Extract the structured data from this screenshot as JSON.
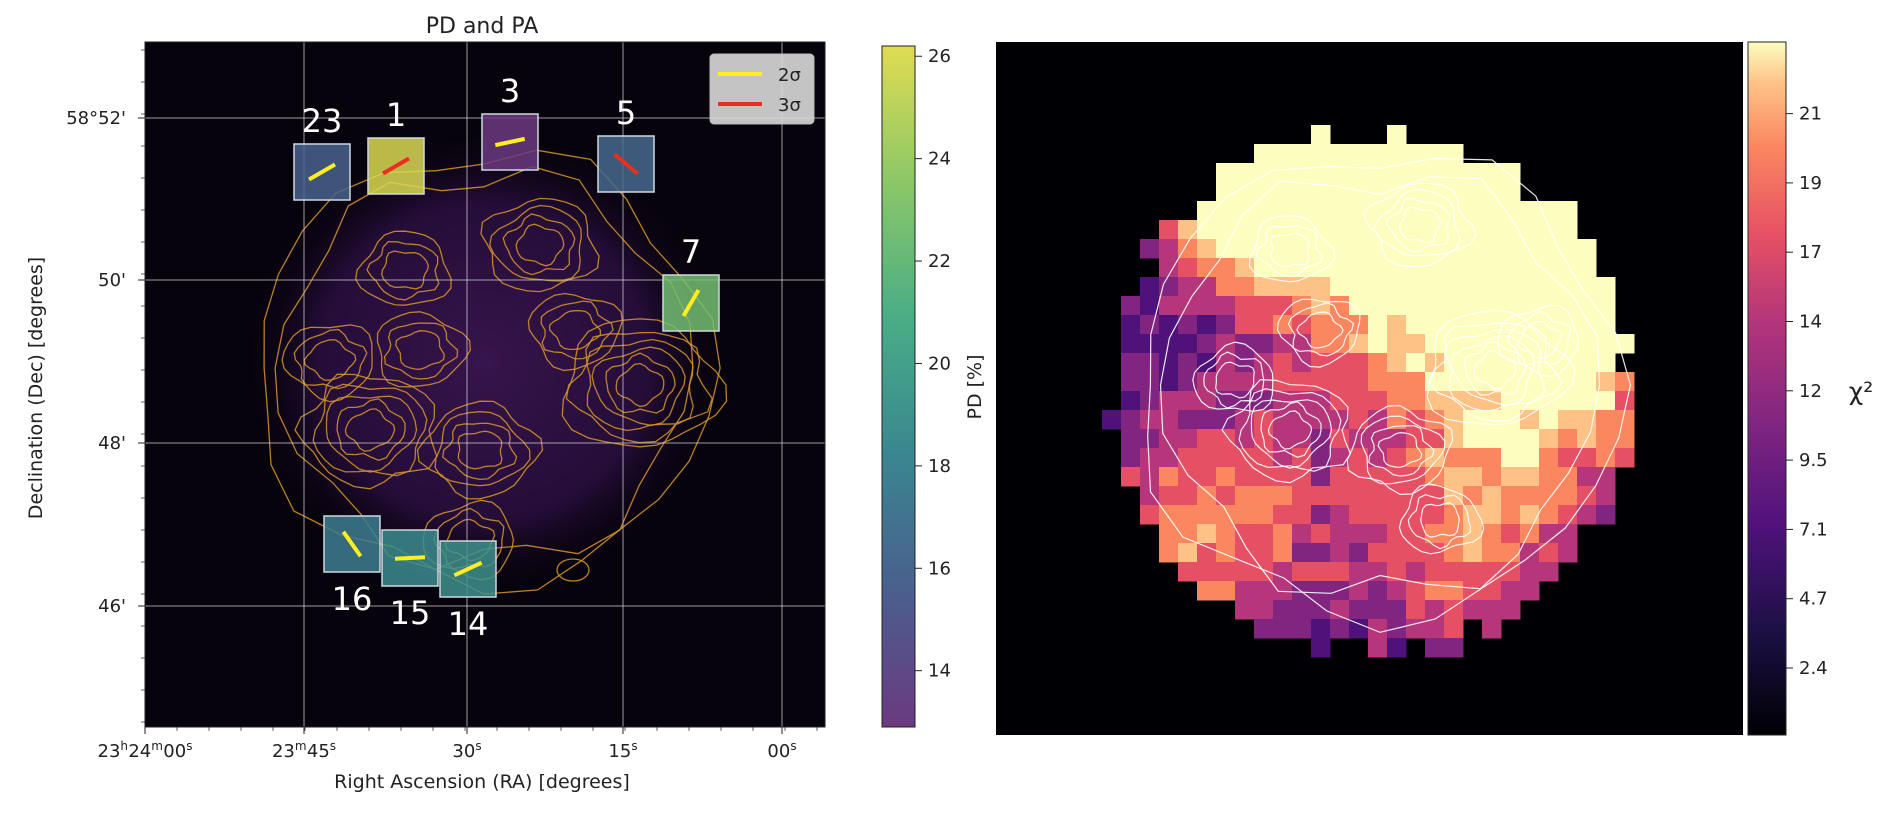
{
  "chart_data": [
    {
      "type": "heatmap",
      "title": "PD and PA",
      "xlabel": "Right Ascension (RA) [degrees]",
      "ylabel": "Declination (Dec) [degrees]",
      "x_ticks": [
        {
          "pre": "23",
          "h": "h",
          "m": "24",
          "mm": "m",
          "s": "00",
          "ss": "s"
        },
        {
          "pre": "23",
          "h": "m",
          "m": "45",
          "mm": "s",
          "s": "",
          "ss": ""
        },
        {
          "pre": "30",
          "h": "s",
          "m": "",
          "mm": "",
          "s": "",
          "ss": ""
        },
        {
          "pre": "15",
          "h": "s",
          "m": "",
          "mm": "",
          "s": "",
          "ss": ""
        },
        {
          "pre": "00",
          "h": "s",
          "m": "",
          "mm": "",
          "s": "",
          "ss": ""
        }
      ],
      "y_ticks": [
        "58°52'",
        "50'",
        "48'",
        "46'"
      ],
      "grid": true,
      "legend": {
        "placement": "top-right",
        "entries": [
          {
            "label": "2σ",
            "color": "#ffee22"
          },
          {
            "label": "3σ",
            "color": "#e83020"
          }
        ]
      },
      "colorbar": {
        "label": "PD [%]",
        "ticks": [
          14,
          16,
          18,
          20,
          22,
          24,
          26
        ],
        "range": [
          12.9,
          26.2
        ],
        "colormap": [
          "#6b3a80",
          "#4a5f8e",
          "#3a8690",
          "#49ad86",
          "#8bc768",
          "#e0dc52"
        ]
      },
      "regions": [
        {
          "id": "23",
          "pd": 15.8,
          "pol": "2σ",
          "pa": 30
        },
        {
          "id": "1",
          "pd": 26.0,
          "pol": "3σ",
          "pa": 30
        },
        {
          "id": "3",
          "pd": 12.9,
          "pol": "2σ",
          "pa": 12
        },
        {
          "id": "5",
          "pd": 16.3,
          "pol": "3σ",
          "pa": -40
        },
        {
          "id": "7",
          "pd": 22.6,
          "pol": "2σ",
          "pa": 60
        },
        {
          "id": "16",
          "pd": 17.7,
          "pol": "2σ",
          "pa": -55
        },
        {
          "id": "15",
          "pd": 18.6,
          "pol": "2σ",
          "pa": 3
        },
        {
          "id": "14",
          "pd": 18.9,
          "pol": "2σ",
          "pa": 25
        }
      ]
    },
    {
      "type": "heatmap",
      "title": "",
      "colorbar": {
        "label": "χ²",
        "ticks": [
          2.4,
          4.7,
          7.1,
          9.5,
          12,
          14,
          17,
          19,
          21
        ],
        "colormap": "magma"
      }
    }
  ]
}
